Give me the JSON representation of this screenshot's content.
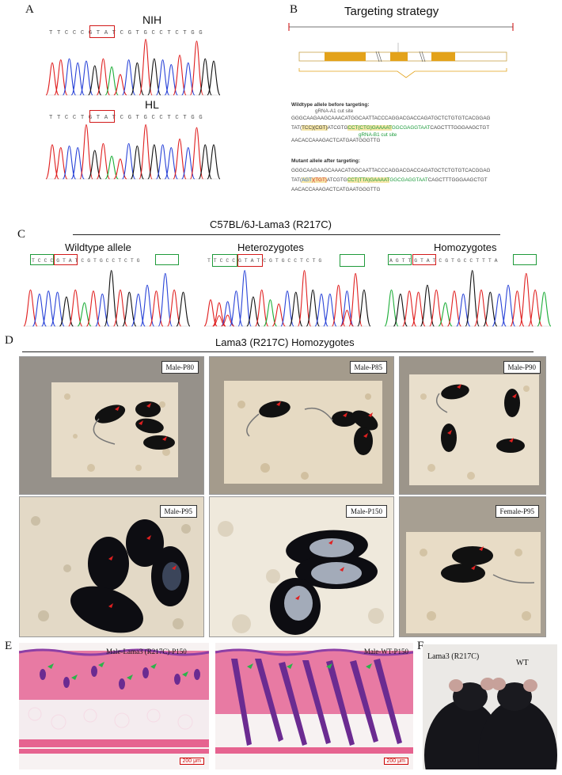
{
  "panels": {
    "A": {
      "letter": "A",
      "top_label": "NIH",
      "bottom_label": "HL",
      "nih_seq": "T T C C C G T A T C G T G C C T C T G G",
      "hl_seq": "T T C C T G T A T C G T G C C T C T G G"
    },
    "B": {
      "letter": "B",
      "title": "Targeting strategy",
      "wt_heading": "Wildtype allele before targeting:",
      "cutA1": "gRNA-A1 cut site",
      "cutB1": "gRNA-B1 cut site",
      "wt_line1": "GGGCAAGAAGCAAACATGGCAATTACCCAGGACGACCAGATGCTCTGTGTCACGGAG",
      "wt_line2_pre": "TAT(",
      "wt_line2_a": "TCC",
      "wt_line2_b": ")(CGT)",
      "wt_line2_c": "ATCGTG",
      "wt_line2_d": "CCT(CTG)GAAAAT",
      "wt_line2_e": "GGCGAGGTAAT",
      "wt_line2_f": "CAGCTTTGGGAAGCTGT",
      "wt_line3": "AACACCAAAGACTCATGAATGGGTTG",
      "mut_heading": "Mutant allele after targeting:",
      "mut_line1": "GGGCAAGAAGCAAACATGGCAATTACCCAGGACGACCAGATGCTCTGTGTCACGGAG",
      "mut_line2_pre": "TAT(",
      "mut_line2_a": "AGT",
      "mut_line2_b": ")(TGT)",
      "mut_line2_c": "ATCGTG",
      "mut_line2_d": "CCT(TTA)GAAAAT",
      "mut_line2_e": "GGCGAGGTAAT",
      "mut_line2_f": "CAGCTTTGGGAAGCTGT",
      "mut_line3": "AACACCAAAGACTCATGAATGGGTTG"
    },
    "C": {
      "letter": "C",
      "title": "C57BL/6J-Lama3 (R217C)",
      "wt_label": "Wildtype allele",
      "het_label": "Heterozygotes",
      "hom_label": "Homozygotes",
      "wt_seq": "T C C C G T A T C G T G C C T C T G",
      "het_seq": "T T C C C G T A T C G T G C C T C T G",
      "hom_seq": "A G T T G T A T C G T G C C T T T A"
    },
    "D": {
      "letter": "D",
      "title": "Lama3 (R217C) Homozygotes",
      "photos": [
        "Male-P80",
        "Male-P85",
        "Male-P90",
        "Male-P95",
        "Male-P150",
        "Female-P95"
      ]
    },
    "E": {
      "letter": "E",
      "left_label": "Male-Lama3 (R217C)-P150",
      "right_label": "Male-WT-P150",
      "scale": "200 μm"
    },
    "F": {
      "letter": "F",
      "left_label": "Lama3 (R217C)",
      "right_label": "WT"
    }
  },
  "colors": {
    "trace_a": "#1fae3a",
    "trace_c": "#2a44d8",
    "trace_g": "#111111",
    "trace_t": "#e02020",
    "box_red": "#d21a1a",
    "box_green": "#1f9a3a",
    "exon": "#e3a21a"
  }
}
